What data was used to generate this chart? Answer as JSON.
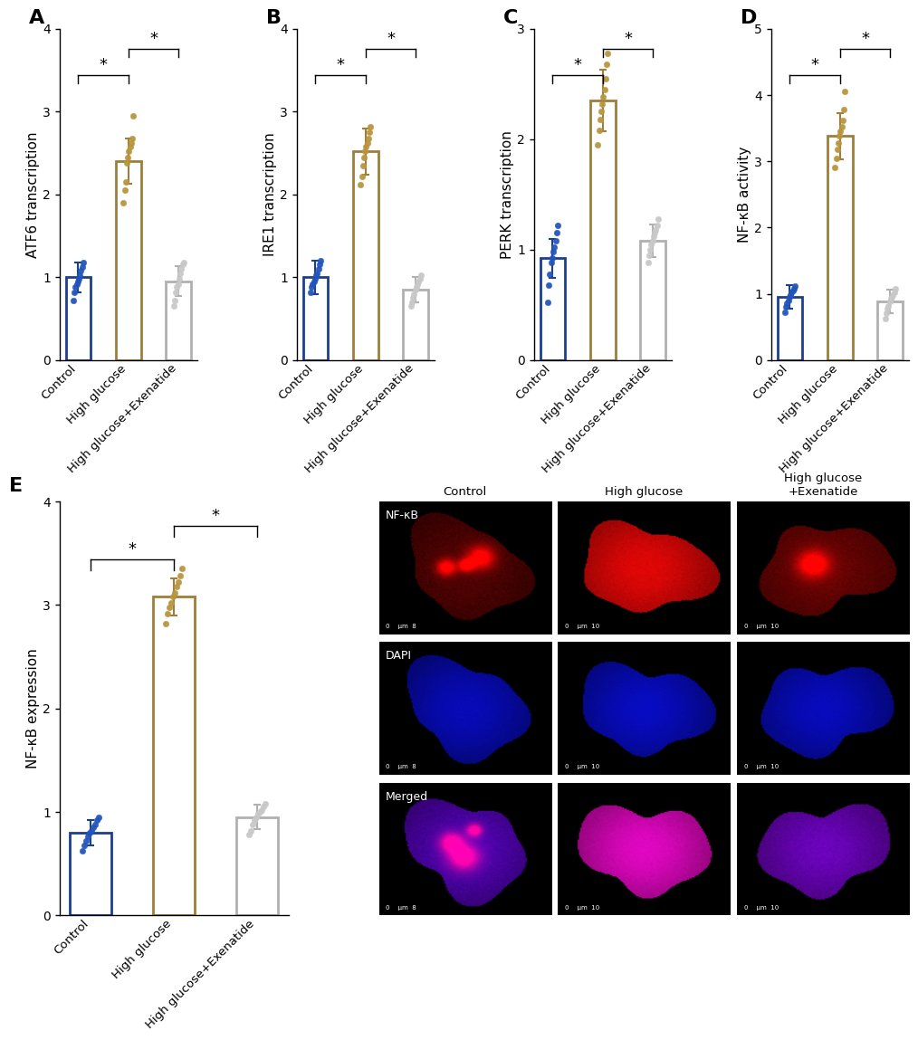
{
  "categories": [
    "Control",
    "High glucose",
    "High glucose+Exenatide"
  ],
  "bar_edge_colors": [
    "#1a3f8f",
    "#9e7e3a",
    "#b0b0b0"
  ],
  "dot_colors": [
    "#2255bb",
    "#b8963e",
    "#c8c8c8"
  ],
  "A_means": [
    1.0,
    2.4,
    0.95
  ],
  "A_errors": [
    0.18,
    0.27,
    0.18
  ],
  "A_ylabel": "ATF6 transcription",
  "A_ylim": [
    0.0,
    4.0
  ],
  "A_yticks": [
    0.0,
    1.0,
    2.0,
    3.0,
    4.0
  ],
  "A_dots_control": [
    0.72,
    0.82,
    0.88,
    0.92,
    0.95,
    0.98,
    1.02,
    1.08,
    1.12,
    1.18
  ],
  "A_dots_hg": [
    1.9,
    2.05,
    2.15,
    2.38,
    2.45,
    2.52,
    2.58,
    2.62,
    2.68,
    2.95
  ],
  "A_dots_hge": [
    0.65,
    0.72,
    0.82,
    0.88,
    0.92,
    0.98,
    1.05,
    1.1,
    1.15,
    1.18
  ],
  "B_means": [
    1.0,
    2.52,
    0.85
  ],
  "B_errors": [
    0.2,
    0.28,
    0.15
  ],
  "B_ylabel": "IRE1 transcription",
  "B_ylim": [
    0.0,
    4.0
  ],
  "B_yticks": [
    0.0,
    1.0,
    2.0,
    3.0,
    4.0
  ],
  "B_dots_control": [
    0.82,
    0.88,
    0.92,
    0.95,
    0.98,
    1.02,
    1.05,
    1.1,
    1.15,
    1.2
  ],
  "B_dots_hg": [
    2.12,
    2.22,
    2.35,
    2.45,
    2.52,
    2.58,
    2.62,
    2.68,
    2.75,
    2.82
  ],
  "B_dots_hge": [
    0.65,
    0.7,
    0.75,
    0.8,
    0.85,
    0.88,
    0.92,
    0.95,
    0.98,
    1.02
  ],
  "C_means": [
    0.92,
    2.35,
    1.08
  ],
  "C_errors": [
    0.18,
    0.28,
    0.15
  ],
  "C_ylabel": "PERK transcription",
  "C_ylim": [
    0.0,
    3.0
  ],
  "C_yticks": [
    0.0,
    1.0,
    2.0,
    3.0
  ],
  "C_dots_control": [
    0.52,
    0.68,
    0.78,
    0.88,
    0.92,
    0.98,
    1.02,
    1.08,
    1.15,
    1.22
  ],
  "C_dots_hg": [
    1.95,
    2.08,
    2.18,
    2.25,
    2.32,
    2.38,
    2.45,
    2.55,
    2.68,
    2.78
  ],
  "C_dots_hge": [
    0.88,
    0.95,
    1.0,
    1.05,
    1.08,
    1.12,
    1.15,
    1.18,
    1.22,
    1.28
  ],
  "D_means": [
    0.95,
    3.38,
    0.88
  ],
  "D_errors": [
    0.18,
    0.35,
    0.18
  ],
  "D_ylabel": "NF-κB activity",
  "D_ylim": [
    0.0,
    5.0
  ],
  "D_yticks": [
    0.0,
    1.0,
    2.0,
    3.0,
    4.0,
    5.0
  ],
  "D_dots_control": [
    0.72,
    0.8,
    0.85,
    0.9,
    0.95,
    0.98,
    1.02,
    1.05,
    1.08,
    1.12
  ],
  "D_dots_hg": [
    2.9,
    3.05,
    3.18,
    3.28,
    3.38,
    3.45,
    3.52,
    3.62,
    3.78,
    4.05
  ],
  "D_dots_hge": [
    0.62,
    0.7,
    0.78,
    0.82,
    0.88,
    0.92,
    0.95,
    0.98,
    1.02,
    1.08
  ],
  "E_means": [
    0.8,
    3.08,
    0.95
  ],
  "E_errors": [
    0.12,
    0.18,
    0.12
  ],
  "E_ylabel": "NF-κB expression",
  "E_ylim": [
    0.0,
    4.0
  ],
  "E_yticks": [
    0.0,
    1.0,
    2.0,
    3.0,
    4.0
  ],
  "E_dots_control": [
    0.62,
    0.68,
    0.72,
    0.76,
    0.8,
    0.82,
    0.85,
    0.88,
    0.92,
    0.95
  ],
  "E_dots_hg": [
    2.82,
    2.92,
    2.98,
    3.02,
    3.08,
    3.12,
    3.18,
    3.22,
    3.28,
    3.35
  ],
  "E_dots_hge": [
    0.78,
    0.82,
    0.88,
    0.92,
    0.95,
    0.98,
    1.0,
    1.02,
    1.05,
    1.08
  ],
  "panel_label_fontsize": 16,
  "axis_label_fontsize": 11,
  "tick_fontsize": 10,
  "dot_size": 22,
  "bar_width": 0.5,
  "background_color": "#ffffff",
  "sig_fontsize": 13,
  "F_col_labels": [
    "Control",
    "High glucose",
    "High glucose\n+Exenatide"
  ],
  "F_row_labels": [
    "NF-κB",
    "DAPI",
    "Merged"
  ],
  "nfkb_intensities": [
    0.32,
    0.88,
    0.42
  ],
  "dapi_intensities": [
    0.72,
    0.76,
    0.74
  ]
}
